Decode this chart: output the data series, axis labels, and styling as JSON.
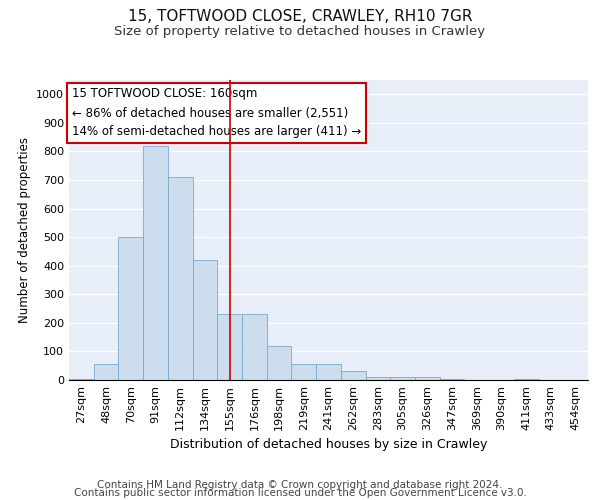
{
  "title": "15, TOFTWOOD CLOSE, CRAWLEY, RH10 7GR",
  "subtitle": "Size of property relative to detached houses in Crawley",
  "xlabel": "Distribution of detached houses by size in Crawley",
  "ylabel": "Number of detached properties",
  "categories": [
    "27sqm",
    "48sqm",
    "70sqm",
    "91sqm",
    "112sqm",
    "134sqm",
    "155sqm",
    "176sqm",
    "198sqm",
    "219sqm",
    "241sqm",
    "262sqm",
    "283sqm",
    "305sqm",
    "326sqm",
    "347sqm",
    "369sqm",
    "390sqm",
    "411sqm",
    "433sqm",
    "454sqm"
  ],
  "values": [
    5,
    57,
    500,
    820,
    710,
    420,
    230,
    230,
    118,
    57,
    57,
    33,
    10,
    10,
    10,
    5,
    0,
    0,
    5,
    0,
    0
  ],
  "bar_color": "#ccdded",
  "bar_edgecolor": "#7aaace",
  "vline_index": 6,
  "vline_color": "#cc0000",
  "annotation_line1": "15 TOFTWOOD CLOSE: 160sqm",
  "annotation_line2": "← 86% of detached houses are smaller (2,551)",
  "annotation_line3": "14% of semi-detached houses are larger (411) →",
  "annotation_box_edgecolor": "#cc0000",
  "ylim": [
    0,
    1050
  ],
  "yticks": [
    0,
    100,
    200,
    300,
    400,
    500,
    600,
    700,
    800,
    900,
    1000
  ],
  "bg_color": "#e8eef8",
  "footer1": "Contains HM Land Registry data © Crown copyright and database right 2024.",
  "footer2": "Contains public sector information licensed under the Open Government Licence v3.0.",
  "title_fontsize": 11,
  "subtitle_fontsize": 9.5,
  "xlabel_fontsize": 9,
  "ylabel_fontsize": 8.5,
  "tick_fontsize": 8,
  "annotation_fontsize": 8.5,
  "footer_fontsize": 7.5
}
